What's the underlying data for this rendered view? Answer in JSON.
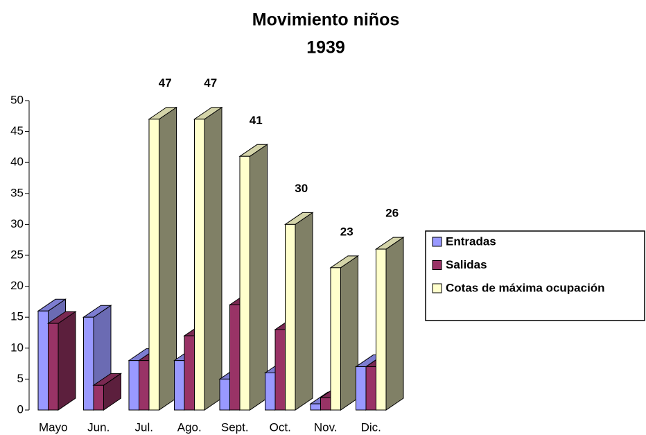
{
  "chart_data": {
    "type": "bar3d",
    "title": "Movimiento niños",
    "subtitle": "1939",
    "categories": [
      "Mayo",
      "Jun.",
      "Jul.",
      "Ago.",
      "Sept.",
      "Oct.",
      "Nov.",
      "Dic."
    ],
    "series": [
      {
        "name": "Entradas",
        "color": "#9999ff",
        "values": [
          16,
          15,
          8,
          8,
          5,
          6,
          1,
          7
        ]
      },
      {
        "name": "Salidas",
        "color": "#993366",
        "values": [
          14,
          4,
          8,
          12,
          17,
          13,
          2,
          7
        ]
      },
      {
        "name": "Cotas de máxima ocupación",
        "color": "#ffffcc",
        "values": [
          null,
          null,
          47,
          47,
          41,
          30,
          23,
          26
        ],
        "data_labels": true
      }
    ],
    "ylim": [
      0,
      50
    ],
    "yticks": [
      0,
      5,
      10,
      15,
      20,
      25,
      30,
      35,
      40,
      45,
      50
    ],
    "legend": "right"
  }
}
